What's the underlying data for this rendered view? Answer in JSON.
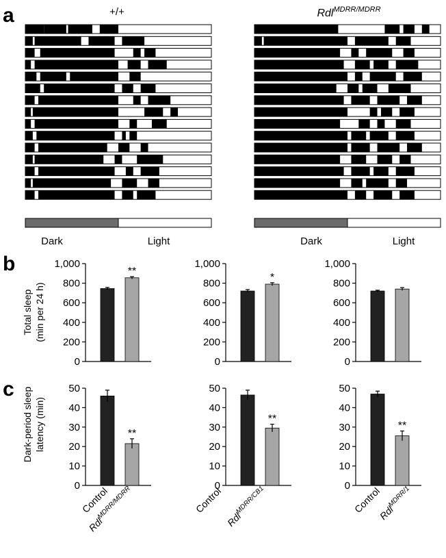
{
  "panel_labels": {
    "a": "a",
    "b": "b",
    "c": "c"
  },
  "actograms": [
    {
      "title": "+/+",
      "light_bar": {
        "dark_label": "Dark",
        "light_label": "Light"
      },
      "rows": [
        [
          [
            0,
            0.1
          ],
          [
            0.1,
            0.22
          ],
          [
            0.23,
            0.36
          ],
          [
            0.4,
            0.5
          ]
        ],
        [
          [
            0,
            0.04
          ],
          [
            0.05,
            0.3
          ],
          [
            0.34,
            0.48
          ],
          [
            0.52,
            0.64
          ]
        ],
        [
          [
            0,
            0.05
          ],
          [
            0.08,
            0.48
          ],
          [
            0.58,
            0.62
          ],
          [
            0.64,
            0.7
          ]
        ],
        [
          [
            0,
            0.03
          ],
          [
            0.05,
            0.5
          ],
          [
            0.55,
            0.62
          ],
          [
            0.66,
            0.76
          ]
        ],
        [
          [
            0,
            0.06
          ],
          [
            0.08,
            0.22
          ],
          [
            0.24,
            0.5
          ],
          [
            0.56,
            0.62
          ]
        ],
        [
          [
            0,
            0.08
          ],
          [
            0.1,
            0.48
          ],
          [
            0.52,
            0.58
          ],
          [
            0.62,
            0.7
          ]
        ],
        [
          [
            0,
            0.05
          ],
          [
            0.07,
            0.5
          ],
          [
            0.58,
            0.62
          ],
          [
            0.66,
            0.78
          ]
        ],
        [
          [
            0,
            0.03
          ],
          [
            0.04,
            0.5
          ],
          [
            0.64,
            0.74
          ],
          [
            0.78,
            0.82
          ]
        ],
        [
          [
            0,
            0.03
          ],
          [
            0.05,
            0.5
          ],
          [
            0.56,
            0.6
          ],
          [
            0.68,
            0.76
          ]
        ],
        [
          [
            0,
            0.04
          ],
          [
            0.06,
            0.48
          ],
          [
            0.52,
            0.54
          ],
          [
            0.56,
            0.6
          ]
        ],
        [
          [
            0,
            0.05
          ],
          [
            0.07,
            0.44
          ],
          [
            0.5,
            0.56
          ],
          [
            0.62,
            0.66
          ]
        ],
        [
          [
            0,
            0.04
          ],
          [
            0.05,
            0.42
          ],
          [
            0.48,
            0.52
          ],
          [
            0.6,
            0.74
          ]
        ],
        [
          [
            0,
            0.05
          ],
          [
            0.07,
            0.48
          ],
          [
            0.54,
            0.58
          ],
          [
            0.62,
            0.72
          ]
        ],
        [
          [
            0,
            0.03
          ],
          [
            0.04,
            0.46
          ],
          [
            0.52,
            0.6
          ],
          [
            0.66,
            0.72
          ]
        ],
        [
          [
            0,
            0.05
          ],
          [
            0.07,
            0.48
          ],
          [
            0.52,
            0.58
          ],
          [
            0.6,
            0.7
          ]
        ]
      ]
    },
    {
      "title": "Rdl",
      "title_superscript": "MDRR/MDRR",
      "light_bar": {
        "dark_label": "Dark",
        "light_label": "Light"
      },
      "rows": [
        [
          [
            0,
            0.45
          ],
          [
            0.7,
            0.78
          ],
          [
            0.8,
            0.86
          ],
          [
            0.9,
            0.94
          ]
        ],
        [
          [
            0,
            0.04
          ],
          [
            0.05,
            0.5
          ],
          [
            0.54,
            0.72
          ],
          [
            0.76,
            0.84
          ]
        ],
        [
          [
            0,
            0.46
          ],
          [
            0.52,
            0.56
          ],
          [
            0.6,
            0.74
          ],
          [
            0.8,
            0.86
          ]
        ],
        [
          [
            0,
            0.48
          ],
          [
            0.54,
            0.62
          ],
          [
            0.64,
            0.72
          ],
          [
            0.76,
            0.88
          ]
        ],
        [
          [
            0,
            0.5
          ],
          [
            0.54,
            0.58
          ],
          [
            0.62,
            0.76
          ],
          [
            0.8,
            0.9
          ]
        ],
        [
          [
            0,
            0.44
          ],
          [
            0.5,
            0.56
          ],
          [
            0.58,
            0.66
          ],
          [
            0.72,
            0.84
          ]
        ],
        [
          [
            0,
            0.48
          ],
          [
            0.52,
            0.62
          ],
          [
            0.66,
            0.78
          ],
          [
            0.82,
            0.9
          ]
        ],
        [
          [
            0,
            0.5
          ],
          [
            0.62,
            0.66
          ],
          [
            0.68,
            0.74
          ],
          [
            0.78,
            0.86
          ]
        ],
        [
          [
            0,
            0.46
          ],
          [
            0.56,
            0.62
          ],
          [
            0.66,
            0.7
          ],
          [
            0.76,
            0.84
          ]
        ],
        [
          [
            0,
            0.5
          ],
          [
            0.52,
            0.6
          ],
          [
            0.62,
            0.72
          ],
          [
            0.76,
            0.86
          ]
        ],
        [
          [
            0,
            0.5
          ],
          [
            0.52,
            0.62
          ],
          [
            0.66,
            0.78
          ],
          [
            0.82,
            0.9
          ]
        ],
        [
          [
            0,
            0.46
          ],
          [
            0.52,
            0.6
          ],
          [
            0.66,
            0.74
          ],
          [
            0.78,
            0.84
          ]
        ],
        [
          [
            0,
            0.48
          ],
          [
            0.52,
            0.62
          ],
          [
            0.64,
            0.72
          ],
          [
            0.76,
            0.86
          ]
        ],
        [
          [
            0,
            0.46
          ],
          [
            0.52,
            0.58
          ],
          [
            0.6,
            0.72
          ],
          [
            0.76,
            0.82
          ]
        ],
        [
          [
            0,
            0.5
          ],
          [
            0.54,
            0.6
          ],
          [
            0.64,
            0.74
          ],
          [
            0.78,
            0.86
          ]
        ]
      ]
    }
  ],
  "chart_data": [
    {
      "id": "b1",
      "type": "bar",
      "categories": [
        "Control",
        "Rdl MDRR/MDRR"
      ],
      "values": [
        745,
        855
      ],
      "errors": [
        12,
        12
      ],
      "significance": [
        "",
        "**"
      ],
      "ylabel": "Total sleep (min per 24 h)",
      "ylim": [
        0,
        1000
      ],
      "yticks": [
        "0",
        "200",
        "400",
        "600",
        "800",
        "1,000"
      ],
      "colors": [
        "#222222",
        "#a6a6a6"
      ]
    },
    {
      "id": "b2",
      "type": "bar",
      "categories": [
        "Control",
        "Rdl MDRR/CB1"
      ],
      "values": [
        720,
        790
      ],
      "errors": [
        15,
        15
      ],
      "significance": [
        "",
        "*"
      ],
      "ylabel": "Total sleep (min per 24 h)",
      "ylim": [
        0,
        1000
      ],
      "yticks": [
        "0",
        "200",
        "400",
        "600",
        "800",
        "1,000"
      ],
      "colors": [
        "#222222",
        "#a6a6a6"
      ]
    },
    {
      "id": "b3",
      "type": "bar",
      "categories": [
        "Control",
        "Rdl MDRR/1"
      ],
      "values": [
        720,
        740
      ],
      "errors": [
        8,
        15
      ],
      "significance": [
        "",
        ""
      ],
      "ylabel": "Total sleep (min per 24 h)",
      "ylim": [
        0,
        1000
      ],
      "yticks": [
        "0",
        "200",
        "400",
        "600",
        "800",
        "1,000"
      ],
      "colors": [
        "#222222",
        "#a6a6a6"
      ]
    },
    {
      "id": "c1",
      "type": "bar",
      "categories": [
        "Control",
        "Rdl MDRR/MDRR"
      ],
      "values": [
        46,
        21.5
      ],
      "errors": [
        3,
        2.5
      ],
      "significance": [
        "",
        "**"
      ],
      "ylabel": "Dark-period sleep latency (min)",
      "ylim": [
        0,
        50
      ],
      "yticks": [
        "0",
        "10",
        "20",
        "30",
        "40",
        "50"
      ],
      "colors": [
        "#222222",
        "#a6a6a6"
      ]
    },
    {
      "id": "c2",
      "type": "bar",
      "categories": [
        "Control",
        "Rdl MDRR/CB1"
      ],
      "values": [
        46.5,
        29.5
      ],
      "errors": [
        2.5,
        2
      ],
      "significance": [
        "",
        "**"
      ],
      "ylabel": "Dark-period sleep latency (min)",
      "ylim": [
        0,
        50
      ],
      "yticks": [
        "0",
        "10",
        "20",
        "30",
        "40",
        "50"
      ],
      "colors": [
        "#222222",
        "#a6a6a6"
      ]
    },
    {
      "id": "c3",
      "type": "bar",
      "categories": [
        "Control",
        "Rdl MDRR/1"
      ],
      "values": [
        47,
        25.5
      ],
      "errors": [
        1.5,
        2.5
      ],
      "significance": [
        "",
        "**"
      ],
      "ylabel": "Dark-period sleep latency (min)",
      "ylim": [
        0,
        50
      ],
      "yticks": [
        "0",
        "10",
        "20",
        "30",
        "40",
        "50"
      ],
      "colors": [
        "#222222",
        "#a6a6a6"
      ]
    }
  ],
  "labels": {
    "b_ylabel_line1": "Total sleep",
    "b_ylabel_line2": "(min per 24 h)",
    "c_ylabel_line1": "Dark-period sleep",
    "c_ylabel_line2": "latency (min)",
    "control": "Control",
    "rdl": "Rdl",
    "sup1": "MDRR/MDRR",
    "sup2": "MDRR/CB1",
    "sup3": "MDRR/1"
  }
}
